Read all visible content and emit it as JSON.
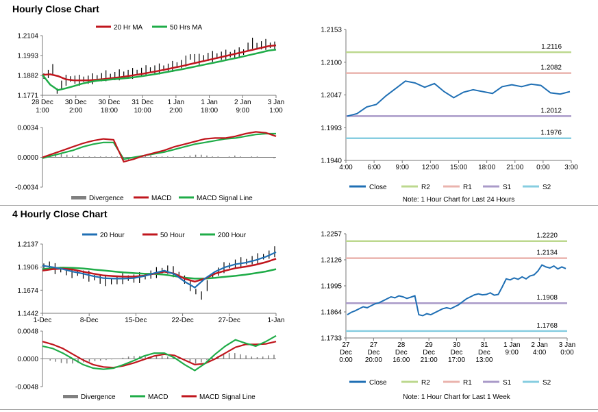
{
  "sections": {
    "hourly_title": "Hourly Close Chart",
    "four_hourly_title": "4 Hourly Close Chart"
  },
  "colors": {
    "ma_short": "#c0161d",
    "ma_long": "#1fac48",
    "close": "#1f6fb4",
    "r2": "#bcd88e",
    "r1": "#eab3ad",
    "s1": "#a99ac8",
    "s2": "#86cde0",
    "divergence": "#808080",
    "bars": "#000000"
  },
  "chart_data": [
    {
      "id": "hourly_price",
      "type": "line",
      "legend": [
        "20 Hr MA",
        "50 Hrs MA"
      ],
      "legend_position": "top",
      "ylim": [
        1.1771,
        1.2104
      ],
      "yticks": [
        "1.2104",
        "1.1993",
        "1.1882",
        "1.1771"
      ],
      "xticks": [
        [
          "28 Dec",
          "1:00"
        ],
        [
          "30 Dec",
          "2:00"
        ],
        [
          "30 Dec",
          "18:00"
        ],
        [
          "31 Dec",
          "10:00"
        ],
        [
          "1 Jan",
          "2:00"
        ],
        [
          "1 Jan",
          "18:00"
        ],
        [
          "2 Jan",
          "9:00"
        ],
        [
          "3 Jan",
          "1:00"
        ]
      ],
      "price_series": [
        1.1878,
        1.189,
        1.1915,
        1.1795,
        1.183,
        1.1855,
        1.1862,
        1.1858,
        1.1855,
        1.186,
        1.1858,
        1.1863,
        1.1868,
        1.1872,
        1.188,
        1.1876,
        1.1878,
        1.1885,
        1.1888,
        1.189,
        1.1893,
        1.1898,
        1.1902,
        1.1908,
        1.1912,
        1.1915,
        1.1918,
        1.1922,
        1.1925,
        1.1932,
        1.194,
        1.1945,
        1.1962,
        1.1985,
        1.1978,
        1.1972,
        1.198,
        1.1985,
        1.1988,
        1.199,
        1.1992,
        1.1995,
        1.1998,
        1.2002,
        1.2008,
        1.2012,
        1.2042,
        1.2062,
        1.2048,
        1.205,
        1.2055,
        1.205,
        1.2048
      ],
      "series": [
        {
          "name": "20 Hr MA",
          "values": [
            1.1885,
            1.1888,
            1.1878,
            1.186,
            1.1855,
            1.1854,
            1.1855,
            1.1858,
            1.1862,
            1.1867,
            1.1872,
            1.1878,
            1.1885,
            1.1892,
            1.19,
            1.1908,
            1.1917,
            1.1926,
            1.1935,
            1.1945,
            1.1955,
            1.1965,
            1.1975,
            1.1985,
            1.1995,
            1.2005,
            1.2015,
            1.2025,
            1.2035,
            1.2045,
            1.205
          ]
        },
        {
          "name": "50 Hrs MA",
          "values": [
            1.1885,
            1.183,
            1.18,
            1.181,
            1.1822,
            1.1835,
            1.1845,
            1.1852,
            1.1856,
            1.186,
            1.1864,
            1.1868,
            1.1873,
            1.1879,
            1.1886,
            1.1893,
            1.1901,
            1.1909,
            1.1917,
            1.1926,
            1.1935,
            1.1944,
            1.1953,
            1.1962,
            1.1971,
            1.198,
            1.199,
            1.2,
            1.201,
            1.202,
            1.2026
          ]
        }
      ]
    },
    {
      "id": "hourly_macd",
      "type": "line",
      "legend": [
        "Divergence",
        "MACD",
        "MACD Signal Line"
      ],
      "legend_position": "bottom",
      "ylim": [
        -0.0034,
        0.0034
      ],
      "yticks": [
        "0.0034",
        "0.0000",
        "-0.0034"
      ],
      "divergence": [
        0.0,
        0.0003,
        0.0004,
        0.0004,
        0.0003,
        0.0002,
        0.0002,
        0.0001,
        0.0001,
        0.0001,
        0.0001,
        0.0001,
        0.0001,
        0.0001,
        0.0,
        -0.0003,
        -0.0001,
        0.0001,
        0.0002,
        0.0002,
        0.0001,
        0.0001,
        0.0001,
        0.0001,
        0.0,
        0.0001,
        0.0002,
        0.0003,
        0.0003,
        0.0002,
        0.0001,
        0.0001,
        0.0,
        0.0001,
        0.0002,
        0.0001,
        0.0,
        0.0001,
        0.0001,
        0.0,
        0.0,
        -0.0001
      ],
      "series": [
        {
          "name": "MACD",
          "values": [
            0.0,
            0.0004,
            0.0008,
            0.0012,
            0.0016,
            0.0019,
            0.0021,
            0.002,
            -0.0005,
            -0.0002,
            0.0002,
            0.0005,
            0.0008,
            0.0012,
            0.0015,
            0.0018,
            0.0021,
            0.0022,
            0.0022,
            0.0024,
            0.0027,
            0.0029,
            0.0028,
            0.0024
          ]
        },
        {
          "name": "MACD Signal Line",
          "values": [
            -0.0001,
            0.0002,
            0.0005,
            0.0008,
            0.0012,
            0.0015,
            0.0017,
            0.0017,
            -0.0002,
            0.0,
            0.0002,
            0.0004,
            0.0006,
            0.0009,
            0.0012,
            0.0015,
            0.0017,
            0.0019,
            0.0021,
            0.0022,
            0.0024,
            0.0026,
            0.0027,
            0.0027
          ]
        }
      ]
    },
    {
      "id": "hourly_levels",
      "type": "line",
      "legend": [
        "Close",
        "R2",
        "R1",
        "S1",
        "S2"
      ],
      "legend_position": "bottom",
      "note": "Note: 1 Hour Chart for Last 24 Hours",
      "ylim": [
        1.194,
        1.2153
      ],
      "yticks": [
        "1.2153",
        "1.2100",
        "1.2047",
        "1.1993",
        "1.1940"
      ],
      "xticks": [
        "4:00",
        "6:00",
        "9:00",
        "12:00",
        "15:00",
        "18:00",
        "21:00",
        "0:00",
        "3:00"
      ],
      "levels": [
        {
          "name": "R2",
          "value": 1.2116,
          "label": "1.2116"
        },
        {
          "name": "R1",
          "value": 1.2082,
          "label": "1.2082"
        },
        {
          "name": "S1",
          "value": 1.2012,
          "label": "1.2012"
        },
        {
          "name": "S2",
          "value": 1.1976,
          "label": "1.1976"
        }
      ],
      "close": [
        1.2012,
        1.2016,
        1.2027,
        1.2031,
        1.2045,
        1.2057,
        1.2069,
        1.2066,
        1.2059,
        1.2065,
        1.2052,
        1.2042,
        1.2051,
        1.2055,
        1.2052,
        1.2049,
        1.206,
        1.2063,
        1.206,
        1.2064,
        1.2062,
        1.205,
        1.2048,
        1.2052
      ]
    },
    {
      "id": "four_hourly_price",
      "type": "line",
      "legend": [
        "20 Hour",
        "50 Hour",
        "200 Hour"
      ],
      "legend_position": "top",
      "ylim": [
        1.1442,
        1.2137
      ],
      "yticks": [
        "1.2137",
        "1.1906",
        "1.1674",
        "1.1442"
      ],
      "xticks": [
        "1-Dec",
        "8-Dec",
        "15-Dec",
        "22-Dec",
        "27-Dec",
        "1-Jan"
      ],
      "price_series": [
        1.1915,
        1.192,
        1.189,
        1.188,
        1.1865,
        1.185,
        1.1845,
        1.183,
        1.1815,
        1.18,
        1.178,
        1.177,
        1.176,
        1.1775,
        1.179,
        1.1795,
        1.179,
        1.18,
        1.181,
        1.183,
        1.185,
        1.187,
        1.188,
        1.186,
        1.183,
        1.178,
        1.172,
        1.166,
        1.162,
        1.172,
        1.182,
        1.186,
        1.19,
        1.192,
        1.194,
        1.195,
        1.196,
        1.1975,
        1.199,
        1.201,
        1.203,
        1.206
      ],
      "series": [
        {
          "name": "20 Hour",
          "values": [
            1.192,
            1.1905,
            1.1885,
            1.186,
            1.184,
            1.1815,
            1.1795,
            1.179,
            1.179,
            1.1795,
            1.1815,
            1.1845,
            1.187,
            1.1835,
            1.176,
            1.17,
            1.179,
            1.186,
            1.1905,
            1.1935,
            1.195,
            1.1975,
            1.201,
            1.2055
          ]
        },
        {
          "name": "50 Hour",
          "values": [
            1.187,
            1.1885,
            1.189,
            1.188,
            1.186,
            1.184,
            1.1822,
            1.1815,
            1.181,
            1.181,
            1.182,
            1.184,
            1.186,
            1.184,
            1.179,
            1.176,
            1.179,
            1.184,
            1.187,
            1.1895,
            1.191,
            1.193,
            1.1955,
            1.199
          ]
        },
        {
          "name": "200 Hour",
          "values": [
            1.1885,
            1.1895,
            1.19,
            1.1898,
            1.1892,
            1.1882,
            1.1872,
            1.1862,
            1.1852,
            1.1845,
            1.184,
            1.1838,
            1.183,
            1.1815,
            1.18,
            1.179,
            1.179,
            1.1798,
            1.1808,
            1.1818,
            1.183,
            1.1845,
            1.1862,
            1.1885
          ]
        }
      ]
    },
    {
      "id": "four_hourly_macd",
      "type": "line",
      "legend": [
        "Divergence",
        "MACD",
        "MACD Signal Line"
      ],
      "legend_position": "bottom",
      "ylim": [
        -0.0048,
        0.0048
      ],
      "yticks": [
        "0.0048",
        "0.0000",
        "-0.0048"
      ],
      "divergence": [
        0.0,
        -0.0003,
        -0.0005,
        -0.0007,
        -0.0008,
        -0.0008,
        -0.0007,
        -0.0006,
        -0.0005,
        -0.0004,
        -0.0003,
        -0.0002,
        -0.0001,
        0.0,
        0.0002,
        0.0004,
        0.0005,
        0.0005,
        0.0004,
        0.0004,
        0.0005,
        0.0005,
        0.0004,
        0.0002,
        0.0,
        -0.0003,
        -0.0006,
        -0.0008,
        -0.0006,
        -0.0002,
        0.0002,
        0.0005,
        0.0008,
        0.001,
        0.001,
        0.0008,
        0.0006,
        0.0004,
        0.0003,
        0.0004,
        0.0006,
        0.0007
      ],
      "series": [
        {
          "name": "MACD",
          "values": [
            0.0022,
            0.0018,
            0.001,
            0.0,
            -0.001,
            -0.0016,
            -0.0018,
            -0.0016,
            -0.001,
            -0.0003,
            0.0005,
            0.001,
            0.001,
            0.0002,
            -0.001,
            -0.002,
            -0.0008,
            0.0008,
            0.0022,
            0.0033,
            0.0027,
            0.0022,
            0.003,
            0.004
          ]
        },
        {
          "name": "MACD Signal Line",
          "values": [
            0.003,
            0.0025,
            0.0018,
            0.0008,
            -0.0002,
            -0.001,
            -0.0014,
            -0.0015,
            -0.0012,
            -0.0007,
            -0.0001,
            0.0005,
            0.0008,
            0.0006,
            -0.0002,
            -0.001,
            -0.0008,
            0.0,
            0.001,
            0.002,
            0.0025,
            0.0025,
            0.0026,
            0.003
          ]
        }
      ]
    },
    {
      "id": "four_hourly_levels",
      "type": "line",
      "legend": [
        "Close",
        "R2",
        "R1",
        "S1",
        "S2"
      ],
      "legend_position": "bottom",
      "note": "Note: 1 Hour Chart for Last 1 Week",
      "ylim": [
        1.1733,
        1.2257
      ],
      "yticks": [
        "1.2257",
        "1.2126",
        "1.1995",
        "1.1864",
        "1.1733"
      ],
      "xticks": [
        [
          "27",
          "Dec",
          "0:00"
        ],
        [
          "27",
          "Dec",
          "20:00"
        ],
        [
          "28",
          "Dec",
          "16:00"
        ],
        [
          "29",
          "Dec",
          "21:00"
        ],
        [
          "30",
          "Dec",
          "17:00"
        ],
        [
          "31",
          "Dec",
          "13:00"
        ],
        [
          "1 Jan",
          "9:00"
        ],
        [
          "2 Jan",
          "4:00"
        ],
        [
          "3 Jan",
          "0:00"
        ]
      ],
      "levels": [
        {
          "name": "R2",
          "value": 1.222,
          "label": "1.2220"
        },
        {
          "name": "R1",
          "value": 1.2134,
          "label": "1.2134"
        },
        {
          "name": "S1",
          "value": 1.1908,
          "label": "1.1908"
        },
        {
          "name": "S2",
          "value": 1.1768,
          "label": "1.1768"
        }
      ],
      "close": [
        1.185,
        1.1862,
        1.187,
        1.188,
        1.189,
        1.1885,
        1.1895,
        1.1905,
        1.191,
        1.192,
        1.193,
        1.194,
        1.1935,
        1.1945,
        1.194,
        1.1932,
        1.1938,
        1.1945,
        1.185,
        1.1845,
        1.1855,
        1.185,
        1.186,
        1.187,
        1.188,
        1.1885,
        1.188,
        1.189,
        1.19,
        1.1915,
        1.193,
        1.194,
        1.195,
        1.1955,
        1.195,
        1.1952,
        1.196,
        1.1948,
        1.1952,
        1.199,
        1.203,
        1.2025,
        1.2035,
        1.2028,
        1.204,
        1.203,
        1.2045,
        1.205,
        1.207,
        1.21,
        1.209,
        1.2085,
        1.2095,
        1.208,
        1.209,
        1.2082
      ]
    }
  ]
}
